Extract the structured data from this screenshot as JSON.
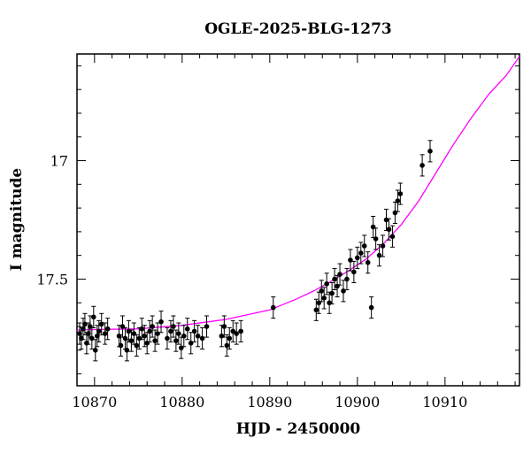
{
  "chart_data": {
    "type": "scatter",
    "title": "OGLE-2025-BLG-1273",
    "xlabel": "HJD - 2450000",
    "ylabel": "I magnitude",
    "xlim": [
      10868,
      10918.5
    ],
    "ylim": [
      17.95,
      16.55
    ],
    "y_inverted": true,
    "grid": false,
    "x_major_ticks": [
      10870,
      10880,
      10890,
      10900,
      10910
    ],
    "x_tick_labels": [
      "10870",
      "10880",
      "10890",
      "10900",
      "10910"
    ],
    "y_major_ticks": [
      17,
      17.5
    ],
    "y_tick_labels": [
      "17",
      "17.5"
    ],
    "colors": {
      "points": "#000000",
      "model": "#ff00ff",
      "frame": "#000000"
    },
    "series": [
      {
        "x": [
          10868.3,
          10868.5,
          10868.7,
          10868.9,
          10869.1,
          10869.3,
          10869.5,
          10869.7,
          10869.9,
          10870.1,
          10870.3,
          10870.5,
          10870.8,
          10871.2,
          10871.5,
          10872.8,
          10873.0,
          10873.2,
          10873.5,
          10873.7,
          10873.9,
          10874.2,
          10874.5,
          10874.8,
          10875.1,
          10875.4,
          10875.7,
          10876.0,
          10876.3,
          10876.6,
          10876.9,
          10877.2,
          10877.6,
          10878.3,
          10878.7,
          10879.0,
          10879.3,
          10879.6,
          10879.9,
          10880.2,
          10880.6,
          10881.0,
          10881.4,
          10881.8,
          10882.3,
          10882.8,
          10884.5,
          10884.8,
          10885.1,
          10885.4,
          10885.8,
          10886.2,
          10886.7,
          10890.4,
          10895.3,
          10895.6,
          10895.9,
          10896.2,
          10896.5,
          10896.8,
          10897.1,
          10897.4,
          10897.7,
          10898.0,
          10898.4,
          10898.8,
          10899.2,
          10899.6,
          10900.0,
          10900.4,
          10900.8,
          10901.2,
          10901.6,
          10901.8,
          10902.1,
          10902.5,
          10902.9,
          10903.3,
          10903.6,
          10904.0,
          10904.3,
          10904.6,
          10904.9,
          10907.4,
          10908.3
        ],
        "y": [
          17.73,
          17.75,
          17.71,
          17.69,
          17.77,
          17.73,
          17.7,
          17.75,
          17.66,
          17.8,
          17.74,
          17.72,
          17.69,
          17.73,
          17.71,
          17.74,
          17.78,
          17.7,
          17.75,
          17.8,
          17.72,
          17.76,
          17.73,
          17.78,
          17.75,
          17.71,
          17.74,
          17.77,
          17.72,
          17.7,
          17.76,
          17.73,
          17.68,
          17.75,
          17.72,
          17.7,
          17.76,
          17.73,
          17.79,
          17.74,
          17.71,
          17.77,
          17.72,
          17.74,
          17.75,
          17.7,
          17.74,
          17.7,
          17.78,
          17.75,
          17.72,
          17.73,
          17.72,
          17.62,
          17.63,
          17.6,
          17.55,
          17.58,
          17.52,
          17.6,
          17.56,
          17.5,
          17.53,
          17.48,
          17.55,
          17.5,
          17.42,
          17.47,
          17.41,
          17.39,
          17.36,
          17.43,
          17.62,
          17.28,
          17.33,
          17.4,
          17.36,
          17.25,
          17.29,
          17.32,
          17.22,
          17.17,
          17.14,
          17.02,
          16.96
        ],
        "yerr": 0.045
      }
    ],
    "model_curve": {
      "x": [
        10868,
        10870,
        10875,
        10880,
        10885,
        10890,
        10893,
        10895,
        10897,
        10899,
        10901,
        10903,
        10905,
        10907,
        10909,
        10911,
        10913,
        10915,
        10917,
        10918.5
      ],
      "y": [
        17.715,
        17.713,
        17.71,
        17.695,
        17.67,
        17.63,
        17.585,
        17.55,
        17.51,
        17.465,
        17.415,
        17.35,
        17.27,
        17.17,
        17.05,
        16.93,
        16.82,
        16.72,
        16.64,
        16.56
      ]
    }
  }
}
